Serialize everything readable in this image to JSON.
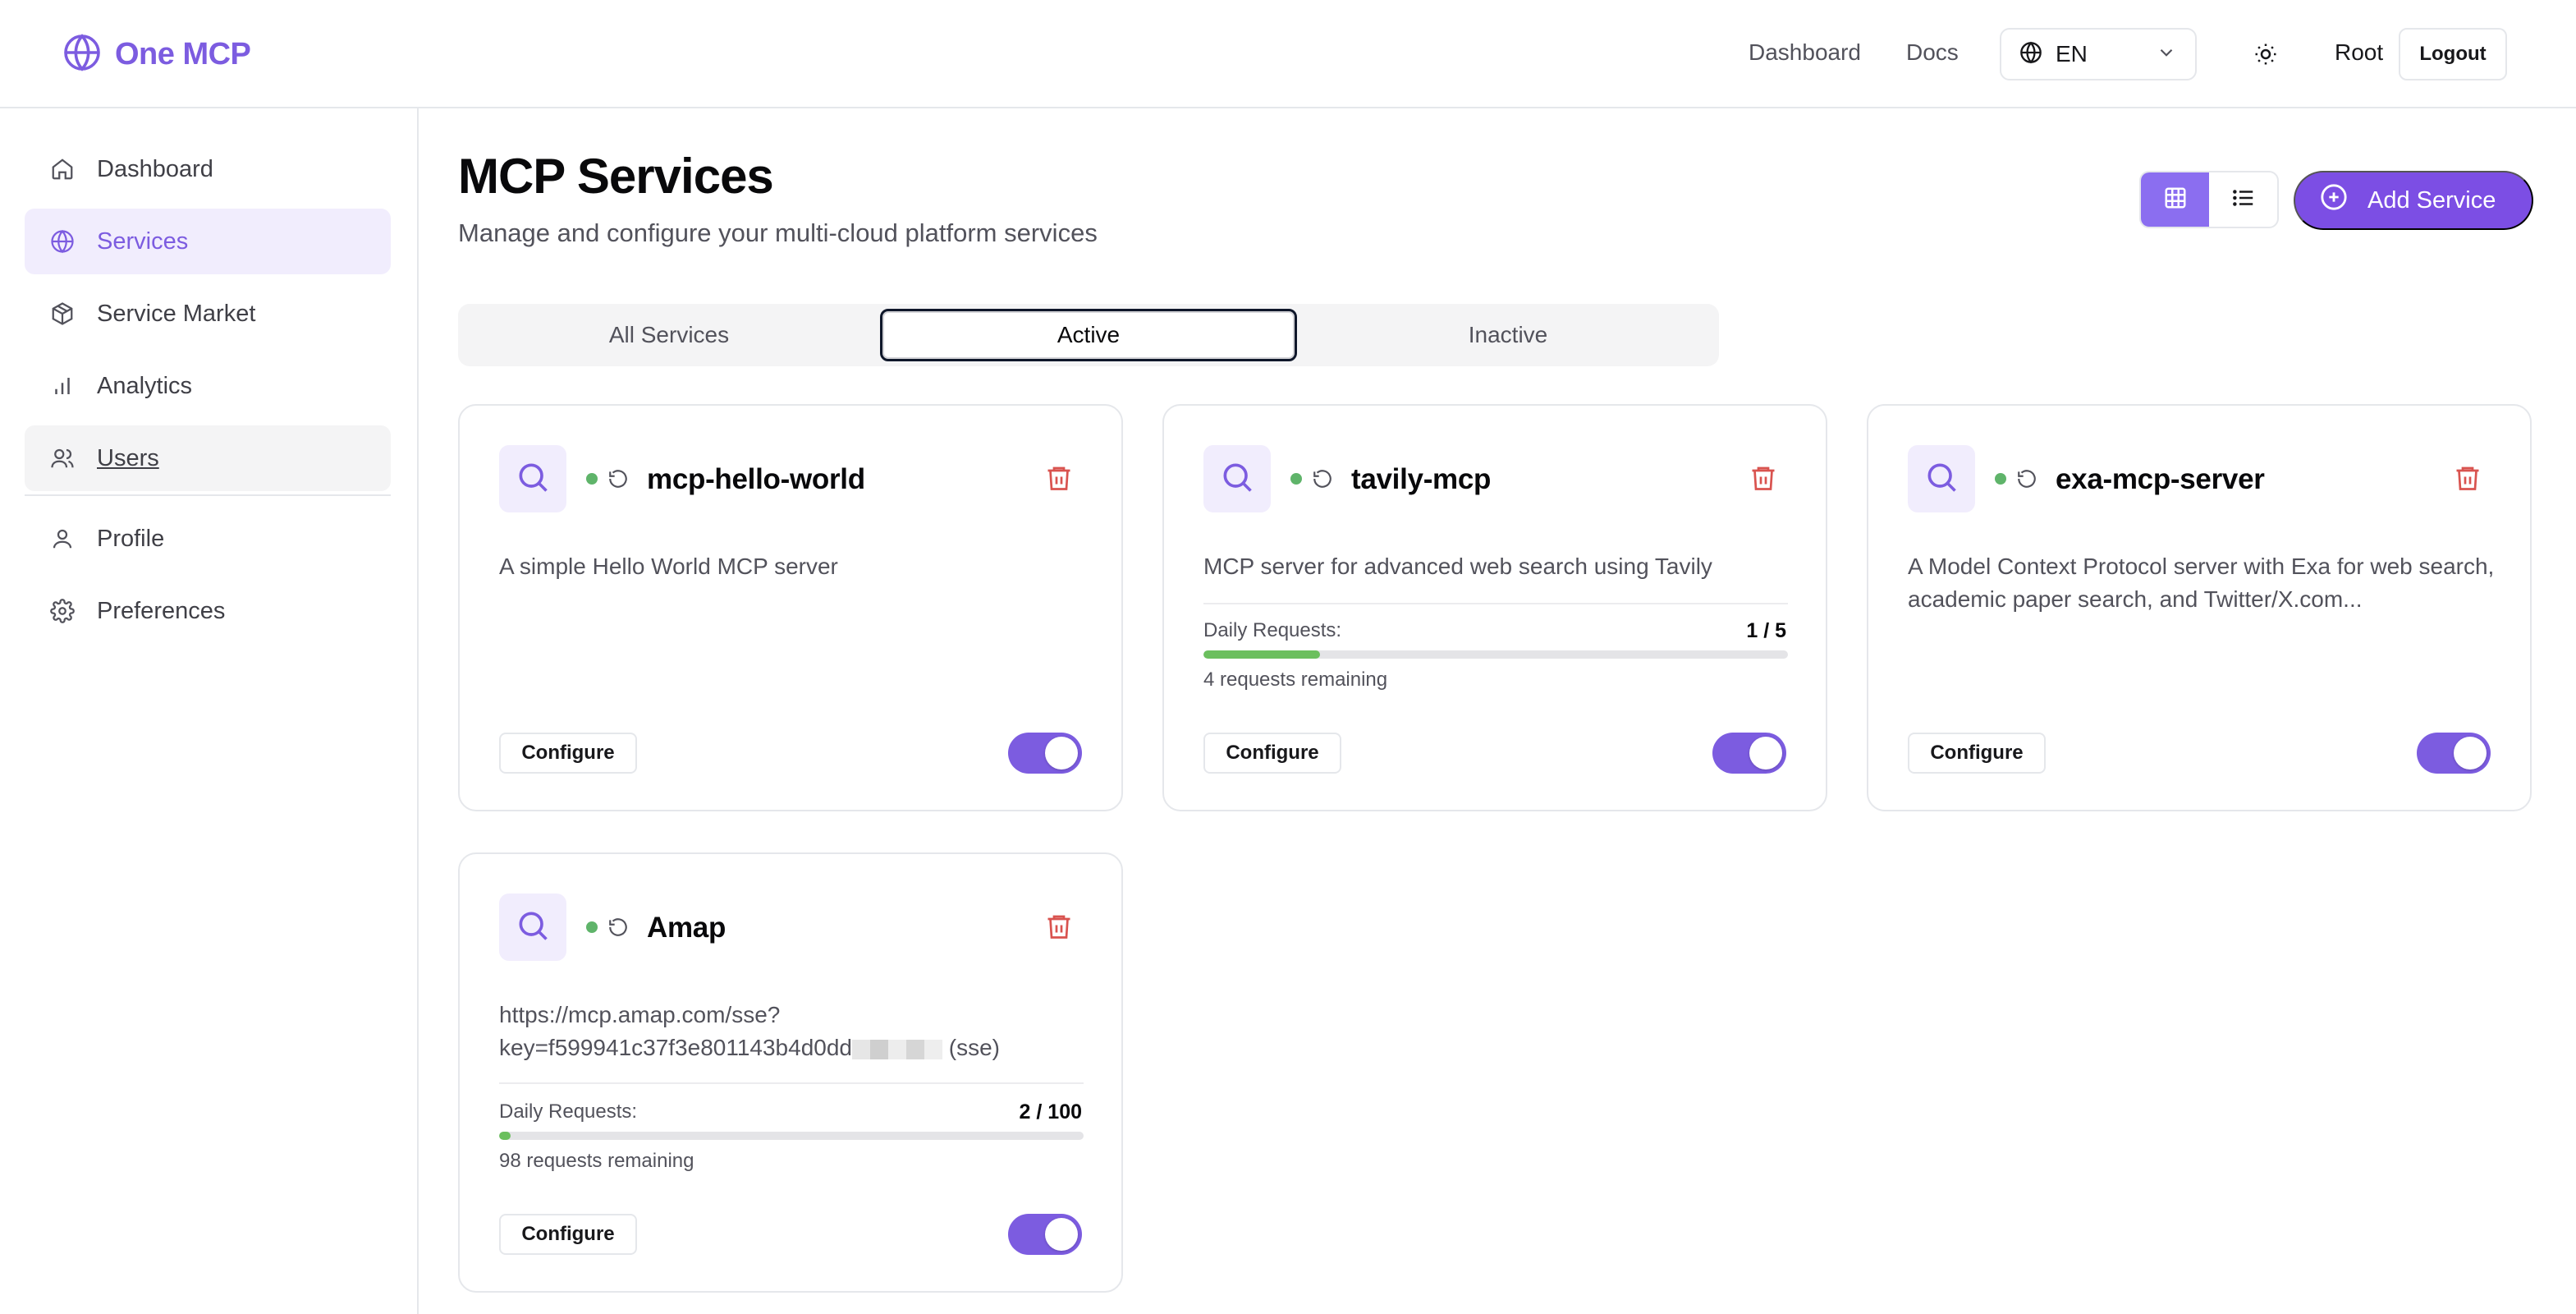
{
  "header": {
    "brand": "One MCP",
    "links": [
      "Dashboard",
      "Docs"
    ],
    "language": "EN",
    "user": "Root",
    "logout_label": "Logout"
  },
  "sidebar": {
    "items": [
      {
        "label": "Dashboard",
        "icon": "home-icon"
      },
      {
        "label": "Services",
        "icon": "globe-icon"
      },
      {
        "label": "Service Market",
        "icon": "package-icon"
      },
      {
        "label": "Analytics",
        "icon": "bar-chart-icon"
      },
      {
        "label": "Users",
        "icon": "users-icon"
      },
      {
        "label": "Profile",
        "icon": "user-icon"
      },
      {
        "label": "Preferences",
        "icon": "gear-icon"
      }
    ],
    "active": "Services"
  },
  "main": {
    "title": "MCP Services",
    "subtitle": "Manage and configure your multi-cloud platform services",
    "add_label": "Add Service",
    "tabs": [
      "All Services",
      "Active",
      "Inactive"
    ],
    "active_tab": "Active"
  },
  "cards": [
    {
      "name": "mcp-hello-world",
      "description": "A simple Hello World MCP server",
      "configure_label": "Configure",
      "enabled": true
    },
    {
      "name": "tavily-mcp",
      "description": "MCP server for advanced web search using Tavily",
      "usage_label": "Daily Requests:",
      "usage_count": "1 / 5",
      "usage_fraction": 0.2,
      "usage_remaining": "4 requests remaining",
      "configure_label": "Configure",
      "enabled": true
    },
    {
      "name": "exa-mcp-server",
      "description": "A Model Context Protocol server with Exa for web search, academic paper search, and Twitter/X.com...",
      "configure_label": "Configure",
      "enabled": true
    },
    {
      "name": "Amap",
      "description_line1": "https://mcp.amap.com/sse?",
      "description_line2": "key=f599941c37f3e801143b4d0dd",
      "description_suffix": "(sse)",
      "usage_label": "Daily Requests:",
      "usage_count": "2 / 100",
      "usage_fraction": 0.02,
      "usage_remaining": "98 requests remaining",
      "configure_label": "Configure",
      "enabled": true
    }
  ],
  "colors": {
    "accent": "#7c5ce0",
    "status_active": "#5fb46a",
    "danger": "#d9534f"
  }
}
